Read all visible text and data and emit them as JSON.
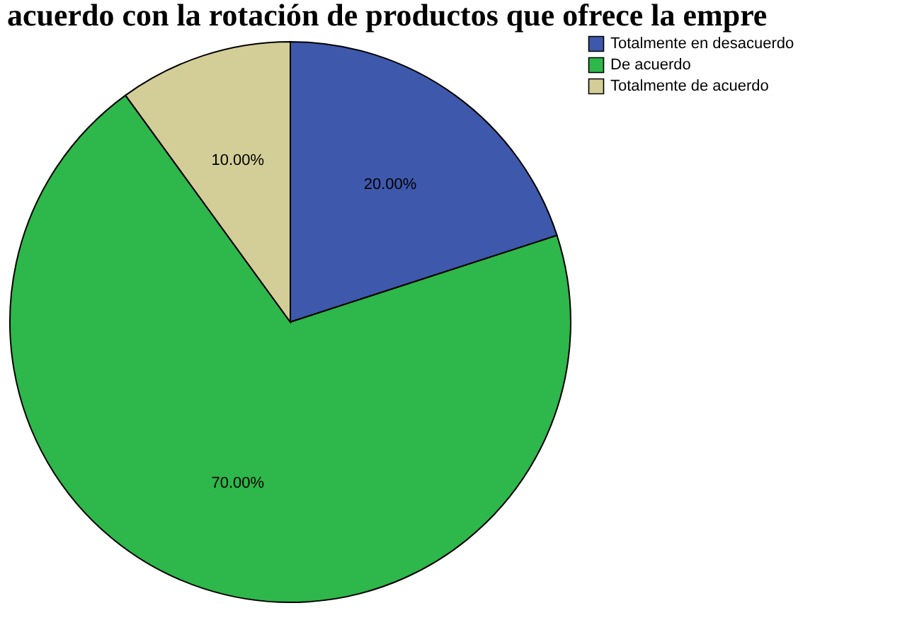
{
  "chart_data": {
    "type": "pie",
    "title": "acuerdo con la rotación de productos que ofrece la empre",
    "categories": [
      "Totalmente en desacuerdo",
      "De acuerdo",
      "Totalmente de acuerdo"
    ],
    "values": [
      20,
      70,
      10
    ],
    "colors": [
      "#3e58ac",
      "#2eb74a",
      "#d3ce97"
    ],
    "value_labels": [
      "20.00%",
      "70.00%",
      "10.00%"
    ],
    "legend": "top right"
  }
}
